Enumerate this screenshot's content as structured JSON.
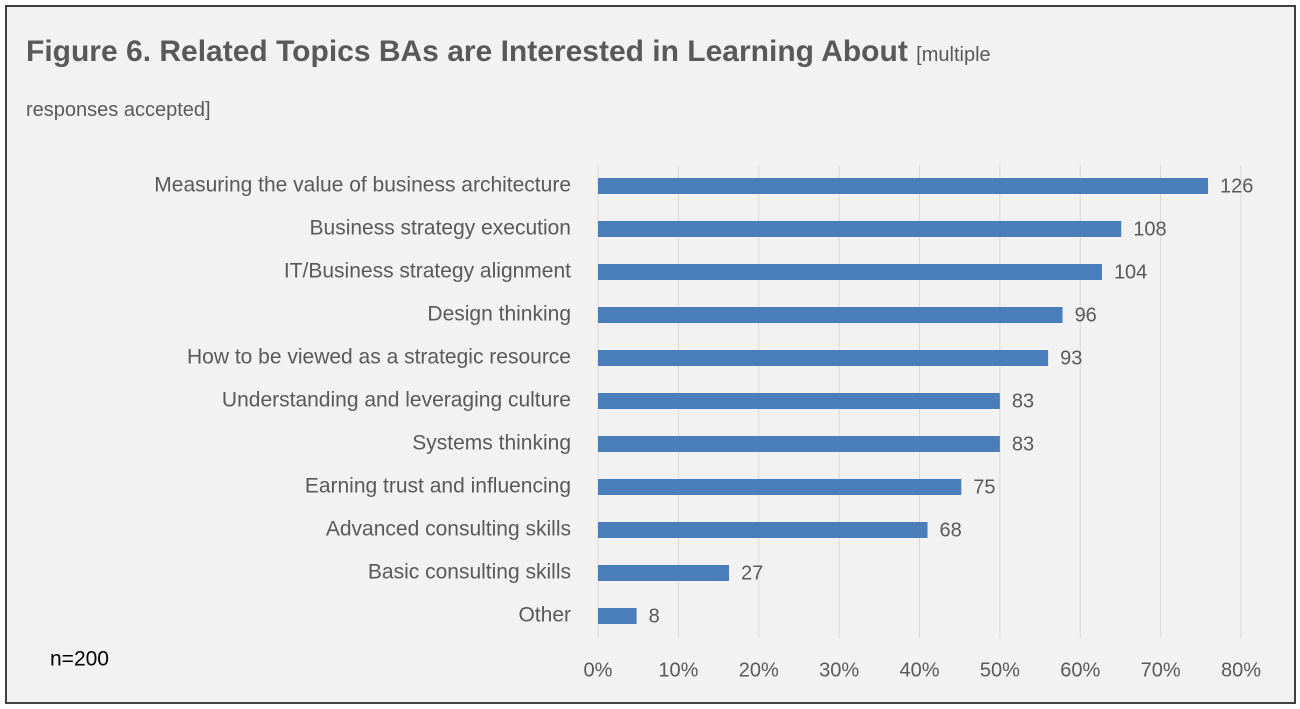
{
  "chart_data": {
    "type": "hbar",
    "title": "Figure 6. Related Topics BAs are Interested in Learning About",
    "subtitle": "[multiple responses accepted]",
    "footnote": "n=200",
    "categories": [
      "Measuring the value of business architecture",
      "Business strategy execution",
      "IT/Business strategy alignment",
      "Design thinking",
      "How to be viewed as a strategic resource",
      "Understanding and leveraging culture",
      "Systems thinking",
      "Earning trust and influencing",
      "Advanced consulting skills",
      "Basic consulting skills",
      "Other"
    ],
    "values": [
      75.9,
      65.1,
      62.7,
      57.8,
      56.0,
      50.0,
      50.0,
      45.2,
      41.0,
      16.3,
      4.8
    ],
    "data_labels": [
      126,
      108,
      104,
      96,
      93,
      83,
      83,
      75,
      68,
      27,
      8
    ],
    "color": "#4a7ebb",
    "xlim": [
      0,
      80
    ],
    "xticks": [
      {
        "value": 0,
        "label": "0%"
      },
      {
        "value": 10,
        "label": "10%"
      },
      {
        "value": 20,
        "label": "20%"
      },
      {
        "value": 30,
        "label": "30%"
      },
      {
        "value": 40,
        "label": "40%"
      },
      {
        "value": 50,
        "label": "50%"
      },
      {
        "value": 60,
        "label": "60%"
      },
      {
        "value": 70,
        "label": "70%"
      },
      {
        "value": 80,
        "label": "80%"
      }
    ],
    "grid": true
  }
}
